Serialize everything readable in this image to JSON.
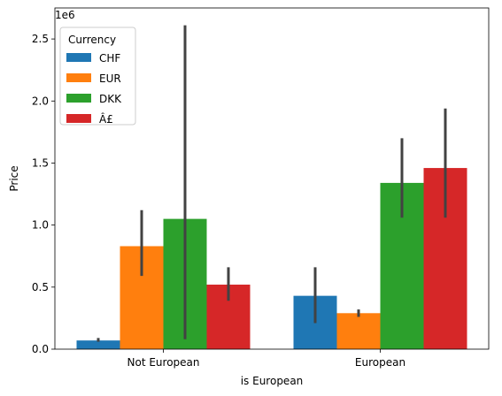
{
  "chart_data": {
    "type": "bar",
    "categories": [
      "Not European",
      "European"
    ],
    "xlabel": "is European",
    "ylabel": "Price",
    "scale_label": "1e6",
    "ylim": [
      0,
      2.75
    ],
    "yticks": [
      0.0,
      0.5,
      1.0,
      1.5,
      2.0,
      2.5
    ],
    "ytick_labels": [
      "0.0",
      "0.5",
      "1.0",
      "1.5",
      "2.0",
      "2.5"
    ],
    "grid": false,
    "legend": {
      "title": "Currency",
      "placement": "top-left"
    },
    "series": [
      {
        "name": "CHF",
        "color": "#1f77b4",
        "values": [
          0.07,
          0.43
        ],
        "error_low": [
          0.06,
          0.21
        ],
        "error_high": [
          0.09,
          0.66
        ]
      },
      {
        "name": "EUR",
        "color": "#ff7f0e",
        "values": [
          0.83,
          0.29
        ],
        "error_low": [
          0.59,
          0.26
        ],
        "error_high": [
          1.12,
          0.32
        ]
      },
      {
        "name": "DKK",
        "color": "#2ca02c",
        "values": [
          1.05,
          1.34
        ],
        "error_low": [
          0.08,
          1.06
        ],
        "error_high": [
          2.61,
          1.7
        ]
      },
      {
        "name": "Â£",
        "color": "#d62728",
        "values": [
          0.52,
          1.46
        ],
        "error_low": [
          0.39,
          1.06
        ],
        "error_high": [
          0.66,
          1.94
        ]
      }
    ]
  }
}
